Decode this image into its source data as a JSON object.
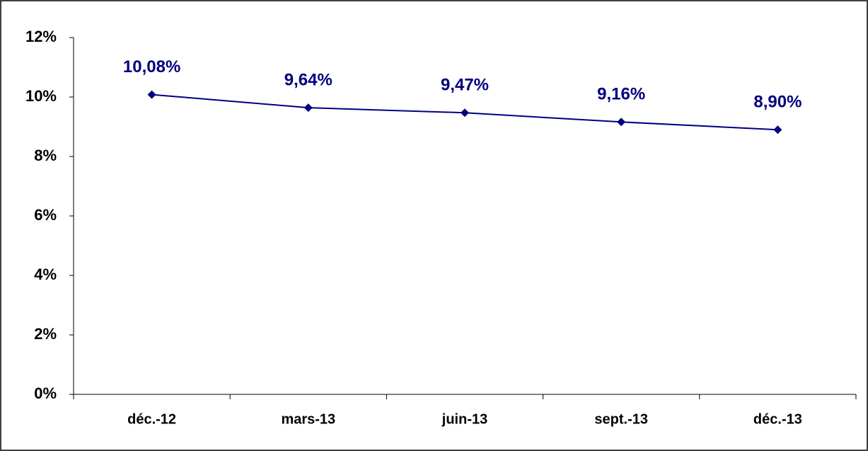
{
  "chart_data": {
    "type": "line",
    "categories": [
      "déc.-12",
      "mars-13",
      "juin-13",
      "sept.-13",
      "déc.-13"
    ],
    "values": [
      10.08,
      9.64,
      9.47,
      9.16,
      8.9
    ],
    "value_labels": [
      "10,08%",
      "9,64%",
      "9,47%",
      "9,16%",
      "8,90%"
    ],
    "color": "#000080",
    "ylim": [
      0,
      12
    ],
    "yticks": [
      {
        "value": 0,
        "label": "0%"
      },
      {
        "value": 2,
        "label": "2%"
      },
      {
        "value": 4,
        "label": "4%"
      },
      {
        "value": 6,
        "label": "6%"
      },
      {
        "value": 8,
        "label": "8%"
      },
      {
        "value": 10,
        "label": "10%"
      },
      {
        "value": 12,
        "label": "12%"
      }
    ],
    "grid": false
  }
}
